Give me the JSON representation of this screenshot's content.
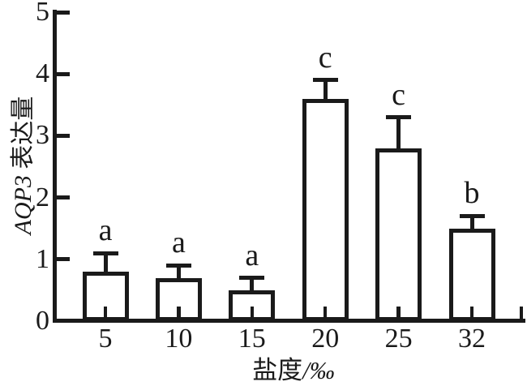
{
  "chart_data": {
    "type": "bar",
    "title": "",
    "categories": [
      "5",
      "10",
      "15",
      "20",
      "25",
      "32"
    ],
    "values": [
      0.8,
      0.7,
      0.5,
      3.6,
      2.8,
      1.5
    ],
    "errors_upper": [
      0.3,
      0.2,
      0.2,
      0.3,
      0.5,
      0.2
    ],
    "sig_letters": [
      "a",
      "a",
      "a",
      "c",
      "c",
      "b"
    ],
    "xlabel": "盐度/‰",
    "ylabel": "AQP3 表达量",
    "ylim": [
      0,
      5
    ],
    "yticks": [
      0,
      1,
      2,
      3,
      4,
      5
    ],
    "grid": false,
    "legend": "none",
    "bar_fill": "#ffffff",
    "stroke_color": "#1a1a1a"
  },
  "chart": {
    "ylabel_italic": "AQP3",
    "ylabel_cn": " 表达量",
    "xlabel_cn": "盐度",
    "xlabel_unit": "/‰"
  }
}
